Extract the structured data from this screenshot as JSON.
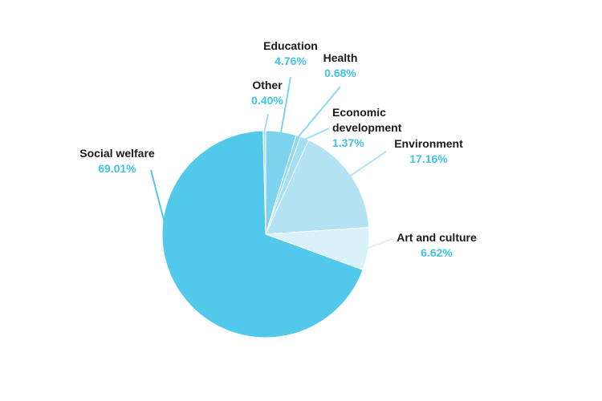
{
  "chart_data": {
    "type": "pie",
    "title": "",
    "start": "top",
    "direction": "clockwise",
    "slices": [
      {
        "label": "Education",
        "value": 4.76,
        "display": "4.76%",
        "color": "#7dd3ee"
      },
      {
        "label": "Health",
        "value": 0.68,
        "display": "0.68%",
        "color": "#8ed8f0"
      },
      {
        "label": "Economic development",
        "label_lines": [
          "Economic",
          "development"
        ],
        "value": 1.37,
        "display": "1.37%",
        "color": "#a3dff2"
      },
      {
        "label": "Environment",
        "value": 17.16,
        "display": "17.16%",
        "color": "#b3e2f2"
      },
      {
        "label": "Art and culture",
        "value": 6.62,
        "display": "6.62%",
        "color": "#d9f1fa"
      },
      {
        "label": "Social welfare",
        "value": 69.01,
        "display": "69.01%",
        "color": "#52c8ea"
      },
      {
        "label": "Other",
        "value": 0.4,
        "display": "0.40%",
        "color": "#a9def1"
      }
    ]
  }
}
